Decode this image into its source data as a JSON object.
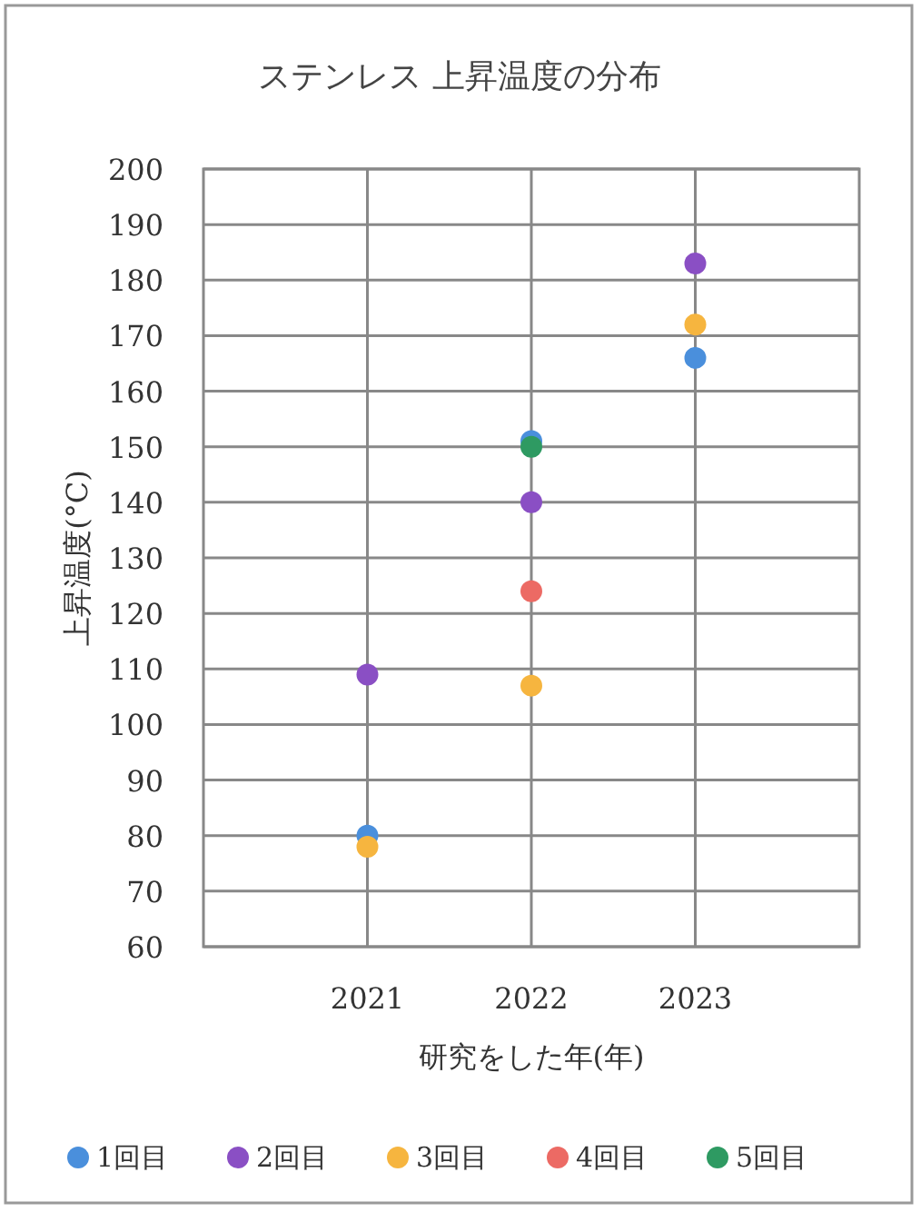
{
  "chart_data": {
    "type": "scatter",
    "title": "ステンレス 上昇温度の分布",
    "xlabel": "研究をした年(年)",
    "ylabel": "上昇温度(°C)",
    "x": [
      2021,
      2022,
      2023
    ],
    "xlim": [
      2020,
      2024
    ],
    "xticks": [
      2021,
      2022,
      2023
    ],
    "ylim": [
      60,
      200
    ],
    "yticks": [
      60,
      70,
      80,
      90,
      100,
      110,
      120,
      130,
      140,
      150,
      160,
      170,
      180,
      190,
      200
    ],
    "grid": true,
    "legend": "bottom",
    "marker": "circle",
    "series": [
      {
        "name": "1回目",
        "color": "#4a8fdc",
        "values": [
          80,
          151,
          166
        ]
      },
      {
        "name": "2回目",
        "color": "#8a4fc4",
        "values": [
          109,
          140,
          183
        ]
      },
      {
        "name": "3回目",
        "color": "#f6b53f",
        "values": [
          78,
          107,
          172
        ]
      },
      {
        "name": "4回目",
        "color": "#ec6a64",
        "values": [
          null,
          124,
          null
        ]
      },
      {
        "name": "5回目",
        "color": "#2e9a62",
        "values": [
          null,
          150,
          null
        ]
      }
    ]
  }
}
